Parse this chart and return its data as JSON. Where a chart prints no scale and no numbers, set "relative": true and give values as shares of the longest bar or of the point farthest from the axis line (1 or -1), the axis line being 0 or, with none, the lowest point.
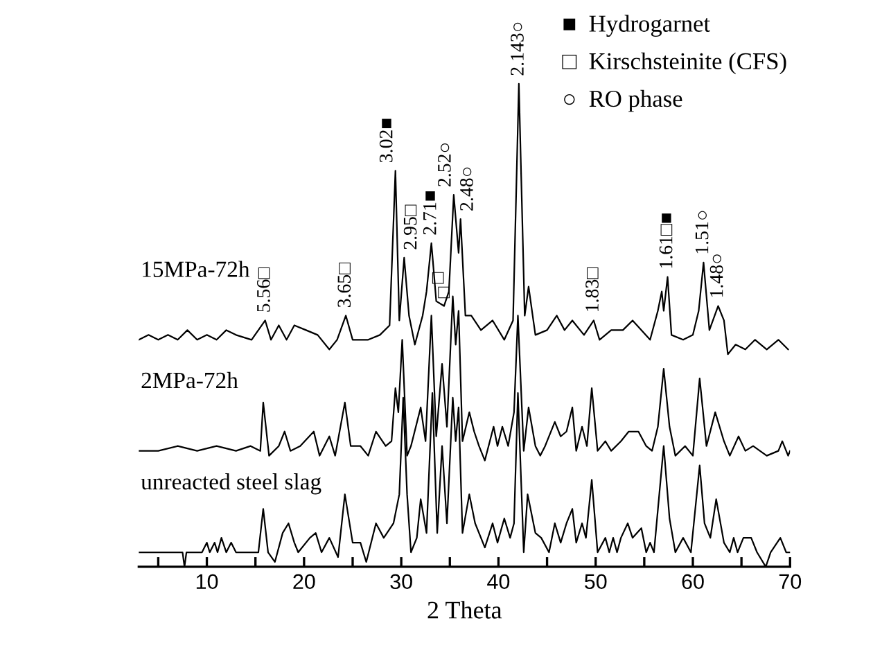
{
  "chart_data": {
    "type": "line",
    "relative": true,
    "xlabel": "2 Theta",
    "xlim": [
      3,
      70
    ],
    "xticks": [
      {
        "value": 5,
        "label": null
      },
      10,
      {
        "value": 15,
        "label": null
      },
      20,
      {
        "value": 25,
        "label": null
      },
      30,
      {
        "value": 35,
        "label": null
      },
      40,
      {
        "value": 45,
        "label": null
      },
      50,
      {
        "value": 55,
        "label": null
      },
      60,
      {
        "value": 65,
        "label": null
      },
      70
    ],
    "grid": false,
    "legend": false,
    "marker": "none",
    "line_style": "solid",
    "tick_labels": "x",
    "series": [
      {
        "name": "15MPa-72h",
        "color": "#000000",
        "x": [
          3,
          4,
          5,
          6,
          7,
          8,
          9,
          10,
          11,
          12,
          13,
          14.6,
          16.0,
          16.6,
          17.4,
          18.2,
          19.0,
          20.2,
          21.4,
          22.6,
          23.4,
          24.3,
          25.0,
          26.6,
          27.8,
          28.8,
          29.4,
          29.8,
          30.3,
          30.8,
          31.4,
          32.2,
          32.6,
          33.1,
          33.6,
          34.4,
          34.9,
          35.4,
          35.9,
          36.1,
          36.6,
          37.2,
          38.2,
          39.4,
          40.6,
          41.5,
          42.1,
          42.7,
          43.1,
          43.8,
          45.0,
          46.0,
          46.8,
          47.6,
          48.8,
          49.8,
          50.4,
          51.6,
          52.8,
          53.8,
          55.6,
          56.4,
          56.8,
          57.0,
          57.4,
          57.8,
          59.0,
          60.0,
          60.6,
          61.1,
          61.7,
          62.6,
          63.2,
          63.6,
          64.4,
          65.4,
          66.4,
          67.6,
          68.8,
          69.8
        ],
        "values": [
          0.47,
          0.48,
          0.47,
          0.48,
          0.47,
          0.49,
          0.47,
          0.48,
          0.47,
          0.49,
          0.48,
          0.47,
          0.51,
          0.47,
          0.5,
          0.47,
          0.5,
          0.49,
          0.48,
          0.45,
          0.47,
          0.52,
          0.47,
          0.47,
          0.48,
          0.5,
          0.82,
          0.51,
          0.64,
          0.52,
          0.46,
          0.52,
          0.57,
          0.67,
          0.55,
          0.54,
          0.57,
          0.77,
          0.65,
          0.72,
          0.52,
          0.52,
          0.49,
          0.51,
          0.47,
          0.51,
          1.0,
          0.52,
          0.58,
          0.48,
          0.49,
          0.52,
          0.49,
          0.51,
          0.48,
          0.51,
          0.47,
          0.49,
          0.49,
          0.51,
          0.47,
          0.53,
          0.57,
          0.53,
          0.6,
          0.48,
          0.47,
          0.48,
          0.53,
          0.63,
          0.49,
          0.54,
          0.51,
          0.44,
          0.46,
          0.45,
          0.47,
          0.45,
          0.47,
          0.45
        ]
      },
      {
        "name": "2MPa-72h",
        "color": "#000000",
        "x": [
          3,
          5,
          7,
          9,
          11,
          13,
          14.5,
          15.5,
          15.8,
          16.4,
          17.4,
          18.0,
          18.6,
          19.6,
          21.0,
          21.6,
          22.6,
          23.2,
          24.2,
          24.8,
          25.8,
          26.6,
          27.4,
          28.4,
          29.0,
          29.4,
          29.7,
          30.1,
          30.6,
          31.0,
          32.0,
          32.5,
          33.1,
          33.6,
          34.2,
          34.7,
          35.3,
          35.6,
          35.9,
          36.3,
          37.0,
          37.5,
          38.0,
          38.6,
          39.5,
          39.9,
          40.4,
          41.0,
          41.6,
          42.0,
          42.6,
          43.1,
          43.8,
          44.3,
          44.8,
          45.8,
          46.4,
          47.0,
          47.6,
          48.0,
          48.6,
          49.1,
          49.6,
          50.2,
          51.0,
          51.6,
          52.6,
          53.4,
          54.4,
          55.2,
          55.8,
          56.4,
          57.0,
          57.6,
          58.2,
          59.2,
          60.0,
          60.7,
          61.4,
          62.3,
          63.2,
          63.8,
          64.7,
          65.4,
          66.2,
          67.6,
          68.8,
          69.2,
          69.8,
          70
        ],
        "values": [
          0.24,
          0.24,
          0.25,
          0.24,
          0.25,
          0.24,
          0.25,
          0.24,
          0.34,
          0.23,
          0.25,
          0.28,
          0.24,
          0.25,
          0.28,
          0.23,
          0.27,
          0.23,
          0.34,
          0.25,
          0.25,
          0.23,
          0.28,
          0.25,
          0.26,
          0.37,
          0.32,
          0.47,
          0.23,
          0.25,
          0.33,
          0.26,
          0.52,
          0.27,
          0.42,
          0.29,
          0.56,
          0.46,
          0.53,
          0.26,
          0.32,
          0.28,
          0.25,
          0.22,
          0.29,
          0.25,
          0.29,
          0.25,
          0.32,
          0.52,
          0.24,
          0.33,
          0.25,
          0.23,
          0.25,
          0.3,
          0.27,
          0.28,
          0.33,
          0.24,
          0.29,
          0.25,
          0.37,
          0.24,
          0.26,
          0.24,
          0.26,
          0.28,
          0.28,
          0.25,
          0.24,
          0.29,
          0.41,
          0.29,
          0.23,
          0.25,
          0.23,
          0.39,
          0.25,
          0.32,
          0.26,
          0.23,
          0.27,
          0.24,
          0.25,
          0.23,
          0.24,
          0.26,
          0.23,
          0.24
        ]
      },
      {
        "name": "unreacted steel slag",
        "color": "#000000",
        "x": [
          3,
          6,
          7.5,
          7.7,
          7.9,
          9.5,
          10.0,
          10.3,
          10.8,
          11.1,
          11.5,
          12,
          12.5,
          13,
          15.3,
          15.8,
          16.3,
          17,
          17.8,
          18.4,
          19.0,
          19.4,
          20.6,
          21.2,
          21.8,
          22.6,
          23.5,
          24.2,
          25.0,
          25.8,
          26.4,
          27.4,
          28.2,
          29.2,
          29.8,
          30.2,
          30.6,
          31.0,
          31.6,
          32.0,
          32.6,
          33.2,
          33.7,
          34.2,
          34.7,
          35.3,
          35.6,
          35.9,
          36.3,
          37.0,
          37.6,
          38.6,
          39.4,
          39.9,
          40.6,
          41.2,
          41.6,
          42.0,
          42.6,
          43.0,
          43.8,
          44.4,
          45.2,
          45.8,
          46.4,
          47.0,
          47.6,
          48.0,
          48.6,
          49.0,
          49.6,
          50.2,
          51.0,
          51.4,
          51.8,
          52.2,
          52.6,
          53.3,
          53.8,
          54.7,
          55.2,
          55.6,
          56.0,
          57.0,
          57.6,
          58.2,
          59.0,
          59.8,
          60.7,
          61.2,
          61.8,
          62.4,
          63.2,
          63.8,
          64.2,
          64.6,
          65.2,
          66.0,
          66.6,
          67.5,
          68.0,
          69.0,
          69.6,
          70
        ],
        "values": [
          0.03,
          0.03,
          0.03,
          0.0,
          0.03,
          0.03,
          0.05,
          0.03,
          0.05,
          0.03,
          0.06,
          0.03,
          0.05,
          0.03,
          0.03,
          0.12,
          0.03,
          0.01,
          0.07,
          0.09,
          0.05,
          0.03,
          0.06,
          0.07,
          0.03,
          0.06,
          0.02,
          0.15,
          0.05,
          0.05,
          0.01,
          0.09,
          0.06,
          0.09,
          0.15,
          0.35,
          0.15,
          0.03,
          0.06,
          0.14,
          0.07,
          0.36,
          0.07,
          0.25,
          0.09,
          0.35,
          0.26,
          0.33,
          0.07,
          0.15,
          0.09,
          0.04,
          0.09,
          0.05,
          0.1,
          0.06,
          0.09,
          0.36,
          0.03,
          0.15,
          0.07,
          0.06,
          0.03,
          0.09,
          0.05,
          0.09,
          0.12,
          0.05,
          0.09,
          0.06,
          0.18,
          0.03,
          0.06,
          0.03,
          0.06,
          0.03,
          0.06,
          0.09,
          0.06,
          0.08,
          0.03,
          0.05,
          0.03,
          0.25,
          0.1,
          0.03,
          0.06,
          0.03,
          0.21,
          0.09,
          0.06,
          0.14,
          0.05,
          0.03,
          0.06,
          0.03,
          0.06,
          0.06,
          0.03,
          0.0,
          0.03,
          0.06,
          0.03,
          0.03
        ]
      }
    ],
    "annotations": [
      {
        "text": "5.56□",
        "x": 16.0,
        "y": 0.51
      },
      {
        "text": "3.65□",
        "x": 24.3,
        "y": 0.52
      },
      {
        "text": "3.02■",
        "x": 29.4,
        "y": 0.82
      },
      {
        "text": "2.95□",
        "x": 30.3,
        "y": 0.64
      },
      {
        "text": "2.71■",
        "x": 33.1,
        "y": 0.67
      },
      {
        "text": "□",
        "x": 33.9,
        "y": 0.57
      },
      {
        "text": "□",
        "x": 34.5,
        "y": 0.54
      },
      {
        "text": "2.52○",
        "x": 35.4,
        "y": 0.77
      },
      {
        "text": "2.48○",
        "x": 36.1,
        "y": 0.72
      },
      {
        "text": "2.143○",
        "x": 42.1,
        "y": 1.0
      },
      {
        "text": "1.83□",
        "x": 49.8,
        "y": 0.51
      },
      {
        "text": "1.61□■",
        "x": 57.4,
        "y": 0.6
      },
      {
        "text": "1.51○",
        "x": 61.1,
        "y": 0.63
      },
      {
        "text": "1.48○",
        "x": 62.6,
        "y": 0.54
      },
      "■  Hydrogarnet",
      "□  Kirschsteinite (CFS)",
      "○  RO phase"
    ]
  }
}
